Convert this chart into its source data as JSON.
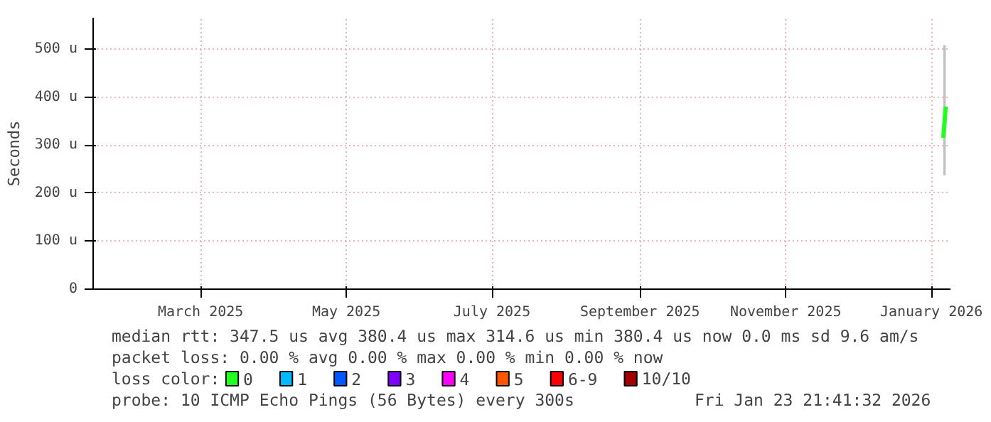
{
  "chart_data": {
    "type": "line",
    "ylabel": "Seconds",
    "x": [
      "2026-01-06",
      "2026-01-07"
    ],
    "xlim": [
      "2025-01-15",
      "2026-01-09"
    ],
    "xticks": [
      {
        "value": "2025-03-01",
        "label": "March 2025"
      },
      {
        "value": "2025-05-01",
        "label": "May 2025"
      },
      {
        "value": "2025-07-01",
        "label": "July 2025"
      },
      {
        "value": "2025-09-01",
        "label": "September 2025"
      },
      {
        "value": "2025-11-01",
        "label": "November 2025"
      },
      {
        "value": "2026-01-01",
        "label": "January 2026"
      }
    ],
    "ylim": [
      0,
      565
    ],
    "yticks": [
      0,
      {
        "value": 100,
        "label": "100 u"
      },
      {
        "value": 200,
        "label": "200 u"
      },
      {
        "value": 300,
        "label": "300 u"
      },
      {
        "value": 400,
        "label": "400 u"
      },
      {
        "value": 500,
        "label": "500 u"
      }
    ],
    "grid": true,
    "legend": "bottom",
    "legend_title": "loss color:",
    "series": [
      {
        "name": "0",
        "color": "#20ff20",
        "values": [
          315,
          380
        ],
        "lower": [
          237,
          237
        ],
        "upper": [
          508,
          508
        ]
      },
      {
        "name": "1",
        "color": "#00b8ff",
        "values": [
          null,
          null
        ]
      },
      {
        "name": "2",
        "color": "#0059ff",
        "values": [
          null,
          null
        ]
      },
      {
        "name": "3",
        "color": "#7e00ff",
        "values": [
          null,
          null
        ]
      },
      {
        "name": "4",
        "color": "#ff00ff",
        "values": [
          null,
          null
        ]
      },
      {
        "name": "5",
        "color": "#ff5500",
        "values": [
          null,
          null
        ]
      },
      {
        "name": "6-9",
        "color": "#ff0000",
        "values": [
          null,
          null
        ]
      },
      {
        "name": "10/10",
        "color": "#a10000",
        "values": [
          null,
          null
        ]
      }
    ],
    "annotations": [
      "median rtt:  347.5 us avg  380.4 us max  314.6 us min  380.4 us now  0.0 ms sd  9.6   am/s",
      "packet loss: 0.00 % avg  0.00 % max  0.00 % min  0.00 % now",
      "probe:       10 ICMP Echo Pings (56 Bytes) every 300s",
      "Fri Jan 23 21:41:32 2026"
    ]
  }
}
